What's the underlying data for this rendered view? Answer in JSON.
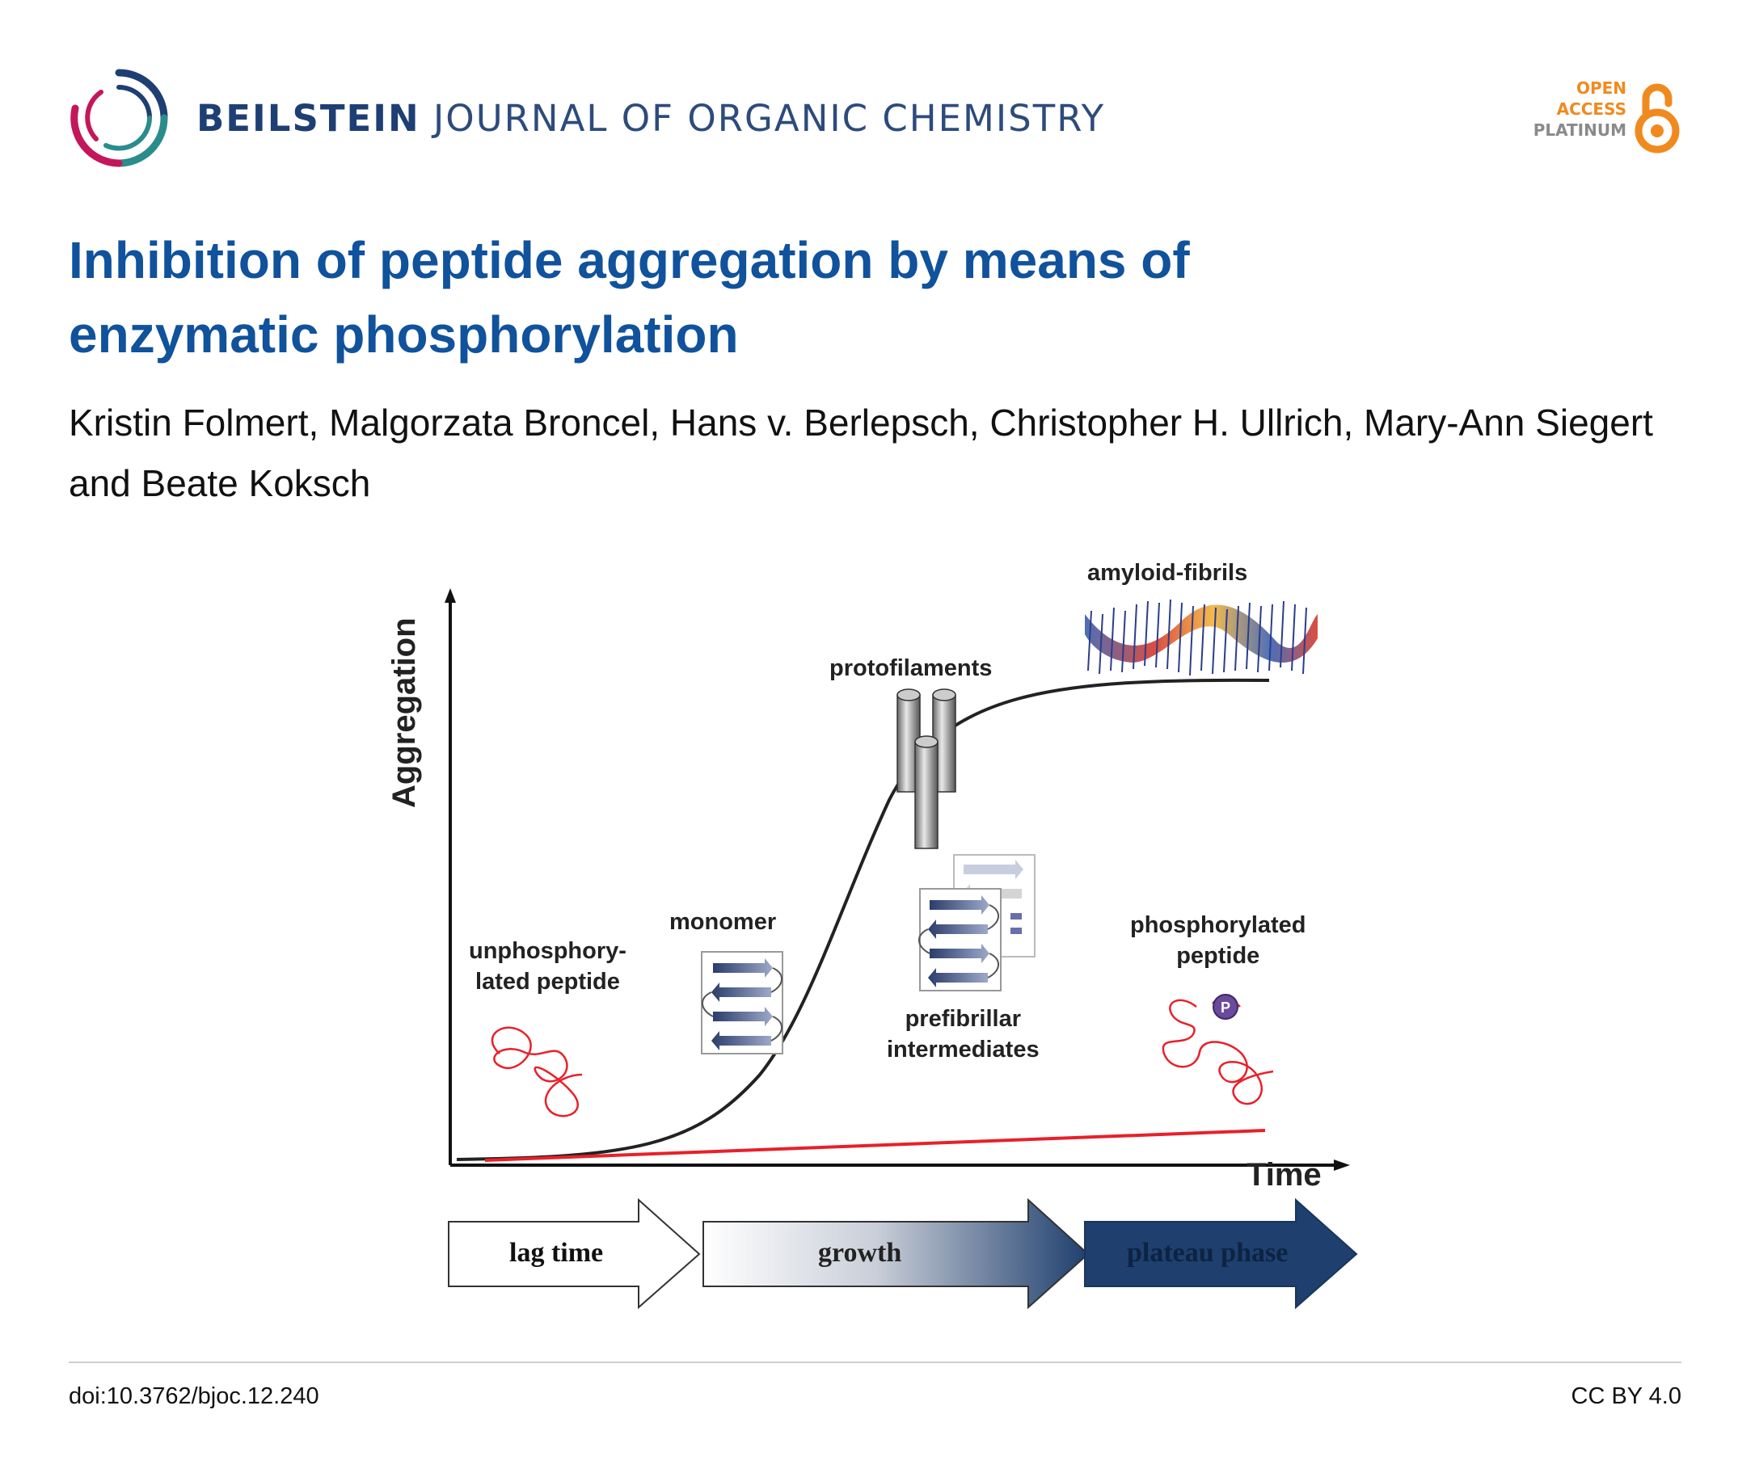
{
  "header": {
    "journal_brand": "BEILSTEIN",
    "journal_rest": "JOURNAL OF ORGANIC CHEMISTRY",
    "logo_icon": "beilstein-ring-logo",
    "oa_badge": {
      "line1": "OPEN",
      "line2": "ACCESS",
      "line3": "PLATINUM",
      "icon": "open-access-lock-icon",
      "color_open": "#f08a1e",
      "color_platinum": "#8a8a8a"
    }
  },
  "article": {
    "title": "Inhibition of peptide aggregation by means of enzymatic phosphorylation",
    "authors": "Kristin Folmert, Malgorzata Broncel, Hans v. Berlepsch, Christopher H. Ullrich, Mary-Ann Siegert and Beate Koksch"
  },
  "figure": {
    "y_axis_label": "Aggregation",
    "x_axis_label": "Time",
    "labels": {
      "amyloid_fibrils": "amyloid-fibrils",
      "protofilaments": "protofilaments",
      "monomer": "monomer",
      "unphosphorylated_line1": "unphosphory-",
      "unphosphorylated_line2": "lated peptide",
      "prefibrillar_line1": "prefibrillar",
      "prefibrillar_line2": "intermediates",
      "phosphorylated_line1": "phosphorylated",
      "phosphorylated_line2": "peptide",
      "phospho_marker": "P"
    },
    "phases": {
      "lag": "lag time",
      "growth": "growth",
      "plateau": "plateau phase"
    },
    "colors": {
      "sigmoid_curve": "#222222",
      "phospho_line": "#e8202a",
      "peptide_coil": "#e8202a",
      "plateau_arrow": "#1f3f6e"
    }
  },
  "footer": {
    "doi": "doi:10.3762/bjoc.12.240",
    "license": "CC BY 4.0"
  }
}
